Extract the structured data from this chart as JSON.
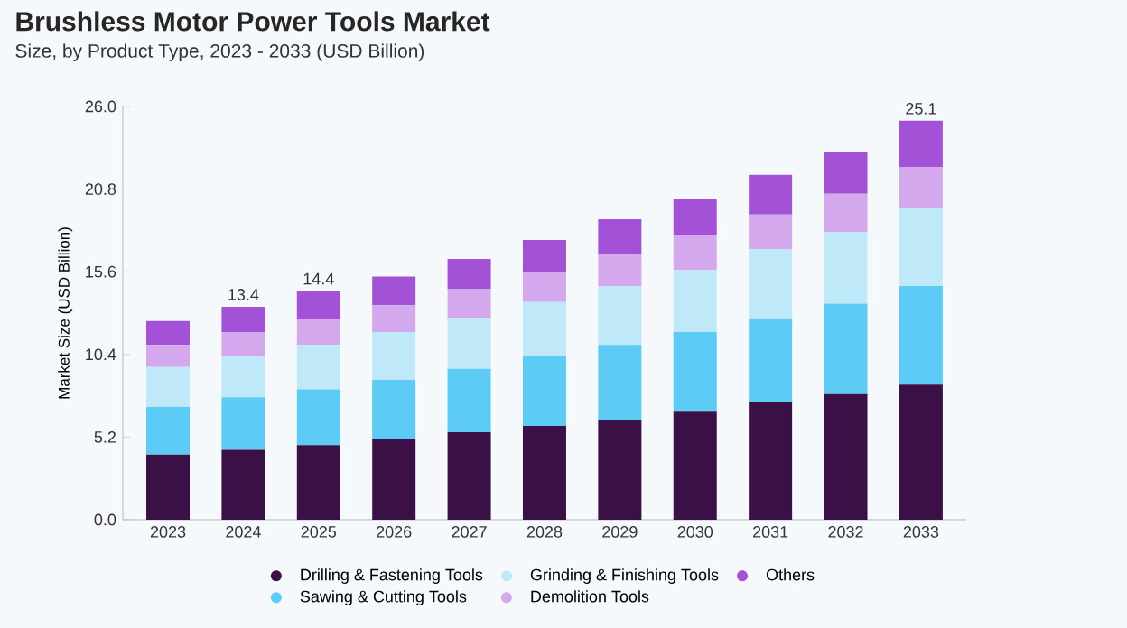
{
  "chart_data": {
    "type": "bar",
    "stacked": true,
    "title": "Brushless Motor Power Tools Market",
    "subtitle": "Size, by Product Type, 2023 - 2033 (USD Billion)",
    "ylabel": "Market Size (USD Billion)",
    "categories": [
      "2023",
      "2024",
      "2025",
      "2026",
      "2027",
      "2028",
      "2029",
      "2030",
      "2031",
      "2032",
      "2033"
    ],
    "series": [
      {
        "name": "Drilling & Fastening Tools",
        "color": "#3a1047",
        "values": [
          4.1,
          4.4,
          4.7,
          5.1,
          5.5,
          5.9,
          6.3,
          6.8,
          7.4,
          7.9,
          8.5
        ]
      },
      {
        "name": "Sawing & Cutting Tools",
        "color": "#5ccbf5",
        "values": [
          3.0,
          3.3,
          3.5,
          3.7,
          4.0,
          4.4,
          4.7,
          5.0,
          5.2,
          5.7,
          6.2
        ]
      },
      {
        "name": "Grinding & Finishing Tools",
        "color": "#bfe9f9",
        "values": [
          2.5,
          2.6,
          2.8,
          3.0,
          3.2,
          3.4,
          3.7,
          3.9,
          4.4,
          4.5,
          4.9
        ]
      },
      {
        "name": "Demolition Tools",
        "color": "#d4a8ec",
        "values": [
          1.4,
          1.5,
          1.6,
          1.7,
          1.8,
          1.9,
          2.0,
          2.2,
          2.2,
          2.4,
          2.6
        ]
      },
      {
        "name": "Others",
        "color": "#a352d8",
        "values": [
          1.5,
          1.6,
          1.8,
          1.8,
          1.9,
          2.0,
          2.2,
          2.3,
          2.5,
          2.6,
          2.9
        ]
      }
    ],
    "totals": [
      null,
      "13.4",
      "14.4",
      null,
      null,
      null,
      null,
      null,
      null,
      null,
      "25.1"
    ],
    "ylim": [
      0,
      26
    ],
    "yticks": [
      {
        "value": 0,
        "label": "0.0"
      },
      5.2,
      10.4,
      15.6,
      20.8,
      {
        "value": 26,
        "label": "26.0"
      }
    ],
    "grid": false,
    "legend": "bottom"
  }
}
